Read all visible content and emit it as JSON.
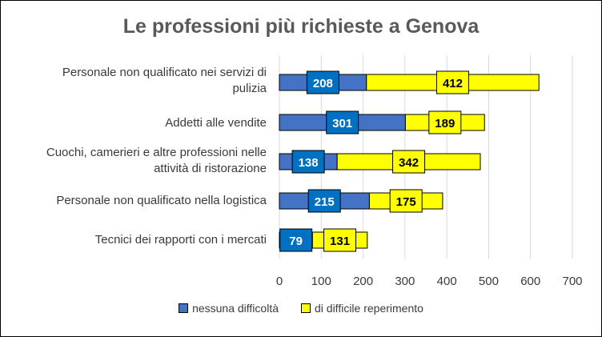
{
  "chart_data": {
    "type": "bar",
    "orientation": "horizontal",
    "stacked": true,
    "title": "Le professioni più richieste a Genova",
    "categories": [
      "Personale non qualificato nei servizi di pulizia",
      "Addetti alle vendite",
      "Cuochi, camerieri e altre professioni nelle attività di ristorazione",
      "Personale non qualificato nella logistica",
      "Tecnici dei rapporti con i mercati"
    ],
    "category_lines": [
      [
        "Personale non qualificato nei servizi di",
        "pulizia"
      ],
      [
        "Addetti alle vendite"
      ],
      [
        "Cuochi, camerieri e altre professioni nelle",
        "attività di ristorazione"
      ],
      [
        "Personale non qualificato nella logistica"
      ],
      [
        "Tecnici dei rapporti con i mercati"
      ]
    ],
    "series": [
      {
        "name": "nessuna difficoltà",
        "color": "#4472C4",
        "label_color": "#0070C0",
        "values": [
          208,
          301,
          138,
          215,
          79
        ]
      },
      {
        "name": "di difficile reperimento",
        "color": "#FFFF00",
        "label_color": "#FFFF00",
        "values": [
          412,
          189,
          342,
          175,
          131
        ]
      }
    ],
    "xlim": [
      0,
      700
    ],
    "xticks": [
      "0",
      "100",
      "200",
      "300",
      "400",
      "500",
      "600",
      "700"
    ],
    "grid": "vertical",
    "legend_position": "bottom",
    "xlabel": "",
    "ylabel": ""
  }
}
